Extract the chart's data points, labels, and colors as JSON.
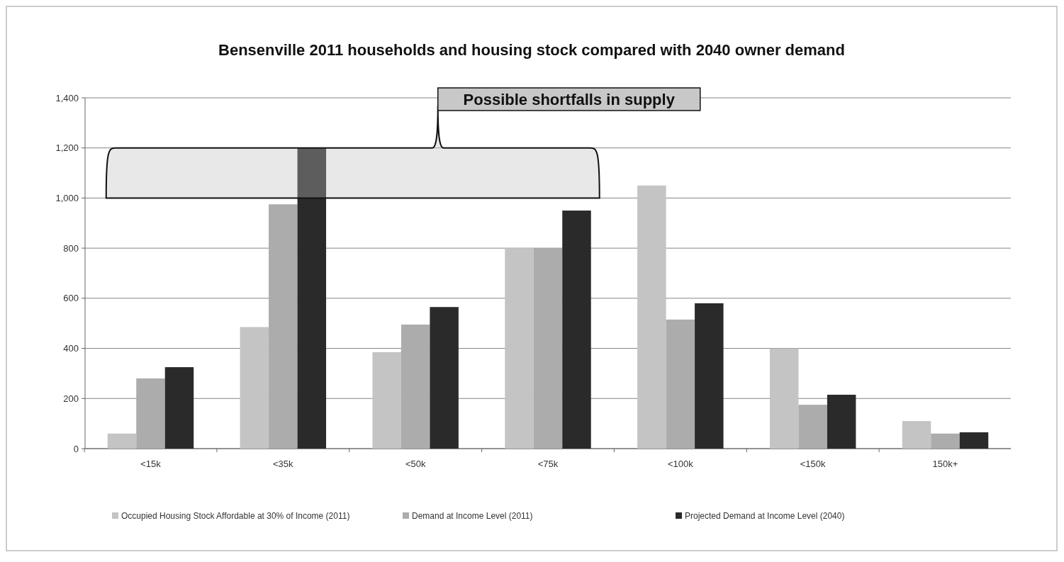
{
  "chart_data": {
    "type": "bar",
    "title": "Bensenville 2011 households and housing stock compared with 2040 owner demand",
    "categories": [
      "<15k",
      "<35k",
      "<50k",
      "<75k",
      "<100k",
      "<150k",
      "150k+"
    ],
    "series": [
      {
        "name": "Occupied Housing Stock Affordable at 30% of Income (2011)",
        "color": "#c4c4c4",
        "values": [
          60,
          485,
          385,
          800,
          1050,
          400,
          110
        ]
      },
      {
        "name": "Demand at Income Level (2011)",
        "color": "#acacac",
        "values": [
          280,
          975,
          495,
          800,
          515,
          175,
          60
        ]
      },
      {
        "name": "Projected Demand at Income Level (2040)",
        "color": "#2a2a2a",
        "values": [
          325,
          1200,
          565,
          950,
          580,
          215,
          65
        ]
      }
    ],
    "ylim": [
      0,
      1400
    ],
    "yticks": [
      {
        "value": 0,
        "label": "0"
      },
      {
        "value": 200,
        "label": "200"
      },
      {
        "value": 400,
        "label": "400"
      },
      {
        "value": 600,
        "label": "600"
      },
      {
        "value": 800,
        "label": "800"
      },
      {
        "value": 1000,
        "label": "1,000"
      },
      {
        "value": 1200,
        "label": "1,200"
      },
      {
        "value": 1400,
        "label": "1,400"
      }
    ],
    "grid": "y",
    "legend": "bottom",
    "annotations": [
      "Possible shortfalls in supply"
    ]
  }
}
